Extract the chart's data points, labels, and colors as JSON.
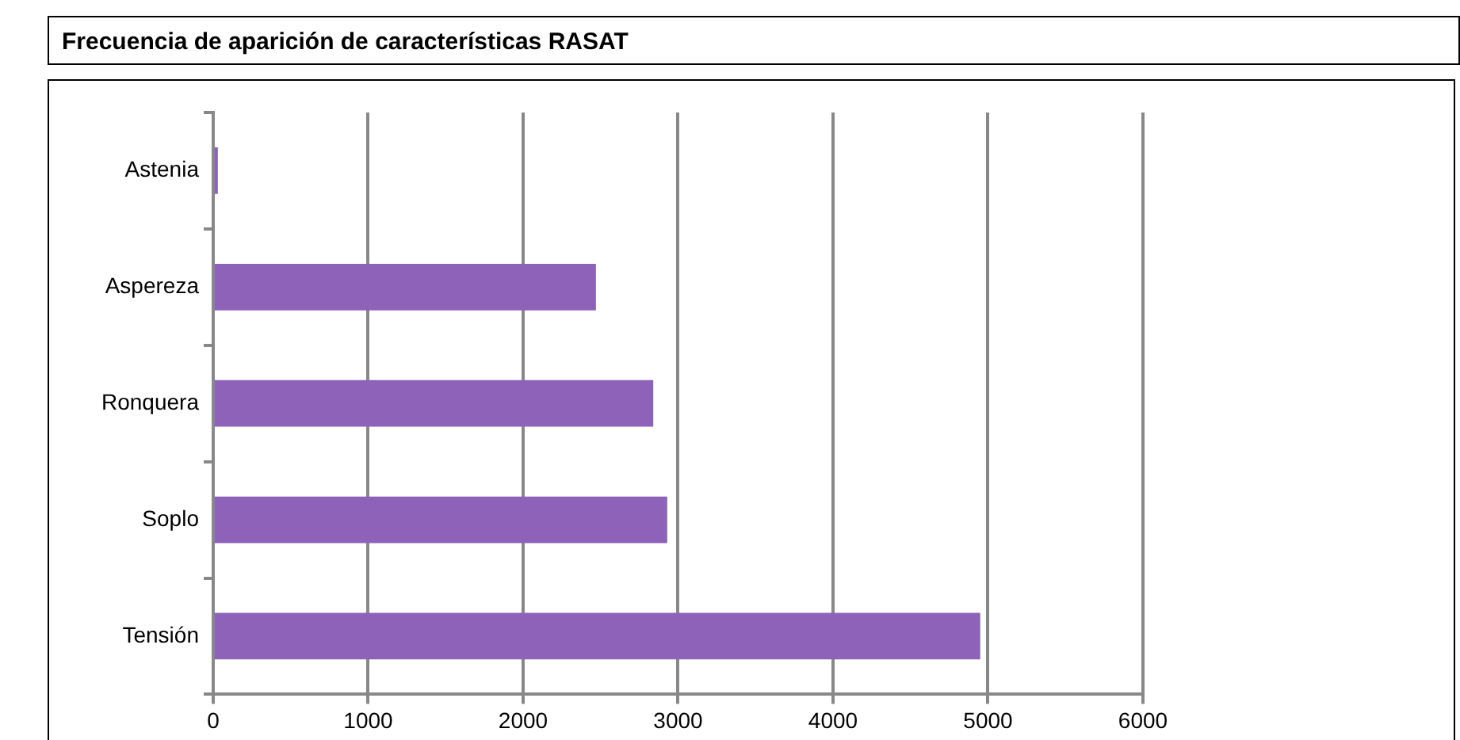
{
  "chart_data": {
    "type": "bar",
    "orientation": "horizontal",
    "title": "Frecuencia de aparición de características RASAT",
    "categories": [
      "Astenia",
      "Aspereza",
      "Ronquera",
      "Soplo",
      "Tensión"
    ],
    "values": [
      30,
      2470,
      2840,
      2930,
      4950
    ],
    "color": "#8e62b8",
    "xlim": [
      0,
      6000
    ],
    "xticks": [
      0,
      1000,
      2000,
      3000,
      4000,
      5000,
      6000
    ],
    "grid": "x",
    "legend": false
  }
}
